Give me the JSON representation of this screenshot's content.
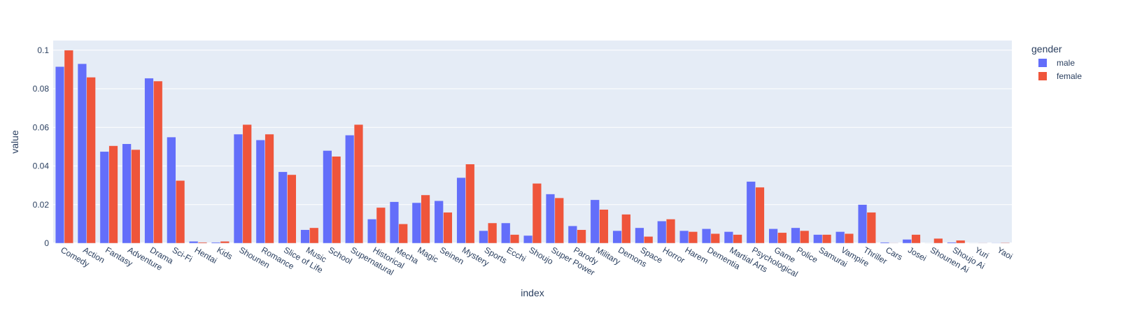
{
  "chart_data": {
    "type": "bar",
    "title": "",
    "xlabel": "index",
    "ylabel": "value",
    "ylim": [
      0,
      0.105
    ],
    "yticks": [
      0,
      0.02,
      0.04,
      0.06,
      0.08,
      0.1
    ],
    "ytick_labels": [
      "0",
      "0.02",
      "0.04",
      "0.06",
      "0.08",
      "0.1"
    ],
    "grid": true,
    "legend": {
      "title": "gender",
      "position": "top-right"
    },
    "categories": [
      "Comedy",
      "Action",
      "Fantasy",
      "Adventure",
      "Drama",
      "Sci-Fi",
      "Hentai",
      "Kids",
      "Shounen",
      "Romance",
      "Slice of Life",
      "Music",
      "School",
      "Supernatural",
      "Historical",
      "Mecha",
      "Magic",
      "Seinen",
      "Mystery",
      "Sports",
      "Ecchi",
      "Shoujo",
      "Super Power",
      "Parody",
      "Military",
      "Demons",
      "Space",
      "Horror",
      "Harem",
      "Dementia",
      "Martial Arts",
      "Psychological",
      "Game",
      "Police",
      "Samurai",
      "Vampire",
      "Thriller",
      "Cars",
      "Josei",
      "Shounen Ai",
      "Shoujo Ai",
      "Yuri",
      "Yaoi"
    ],
    "series": [
      {
        "name": "male",
        "color": "#636efa",
        "values": [
          0.0915,
          0.093,
          0.0475,
          0.0515,
          0.0855,
          0.055,
          0.001,
          0.0005,
          0.0565,
          0.0535,
          0.037,
          0.007,
          0.048,
          0.056,
          0.0125,
          0.0215,
          0.021,
          0.022,
          0.034,
          0.0065,
          0.0105,
          0.004,
          0.0255,
          0.009,
          0.0225,
          0.0065,
          0.008,
          0.0115,
          0.0065,
          0.0075,
          0.006,
          0.032,
          0.0075,
          0.008,
          0.0045,
          0.006,
          0.02,
          0.0005,
          0.002,
          0.0001,
          0.0005,
          0.0001,
          0.0002
        ]
      },
      {
        "name": "female",
        "color": "#ef553b",
        "values": [
          0.1,
          0.086,
          0.0505,
          0.0485,
          0.084,
          0.0325,
          0.0005,
          0.001,
          0.0615,
          0.0565,
          0.0355,
          0.008,
          0.045,
          0.0615,
          0.0185,
          0.01,
          0.025,
          0.016,
          0.041,
          0.0105,
          0.0045,
          0.031,
          0.0235,
          0.007,
          0.0175,
          0.015,
          0.0035,
          0.0125,
          0.006,
          0.005,
          0.0045,
          0.029,
          0.0055,
          0.0065,
          0.0045,
          0.005,
          0.016,
          0.0002,
          0.0045,
          0.0025,
          0.0015,
          0.0002,
          0.0003
        ]
      }
    ]
  }
}
